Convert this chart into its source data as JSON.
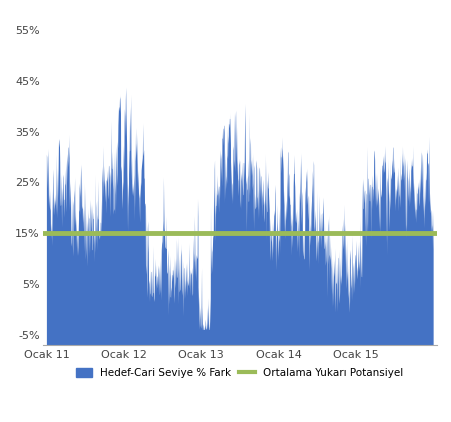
{
  "title": "",
  "ylabel": "",
  "xlabel": "",
  "yticks": [
    -0.05,
    0.05,
    0.15,
    0.25,
    0.35,
    0.45,
    0.55
  ],
  "ytick_labels": [
    "-5%",
    "5%",
    "15%",
    "25%",
    "35%",
    "45%",
    "55%"
  ],
  "xtick_labels": [
    "Ocak 11",
    "Ocak 12",
    "Ocak 13",
    "Ocak 14",
    "Ocak 15"
  ],
  "fill_color": "#4472C4",
  "fill_alpha": 1.0,
  "line_color": "#9BBB59",
  "line_value": 0.15,
  "line_width": 3.5,
  "legend_fill_label": "Hedef-Cari Seviye % Fark",
  "legend_line_label": "Ortalama Yukarı Potansiyel",
  "background_color": "#ffffff",
  "ylim": [
    -0.07,
    0.58
  ],
  "fill_baseline": -0.07,
  "num_points": 1250,
  "seed": 42
}
